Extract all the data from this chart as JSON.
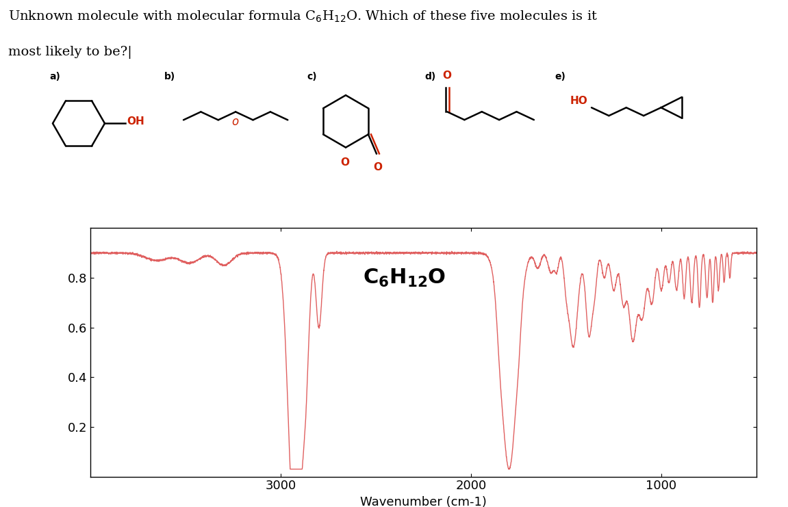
{
  "background_color": "#ffffff",
  "line_color": "#e06060",
  "xlabel": "Wavenumber (cm-1)",
  "xlim": [
    4000,
    500
  ],
  "ylim": [
    0.0,
    1.0
  ],
  "yticks": [
    0.2,
    0.4,
    0.6,
    0.8
  ],
  "xticks": [
    3000,
    2000,
    1000
  ],
  "red": "#cc2200",
  "black": "#000000",
  "lw_mol": 1.8,
  "lw_spec": 1.0
}
